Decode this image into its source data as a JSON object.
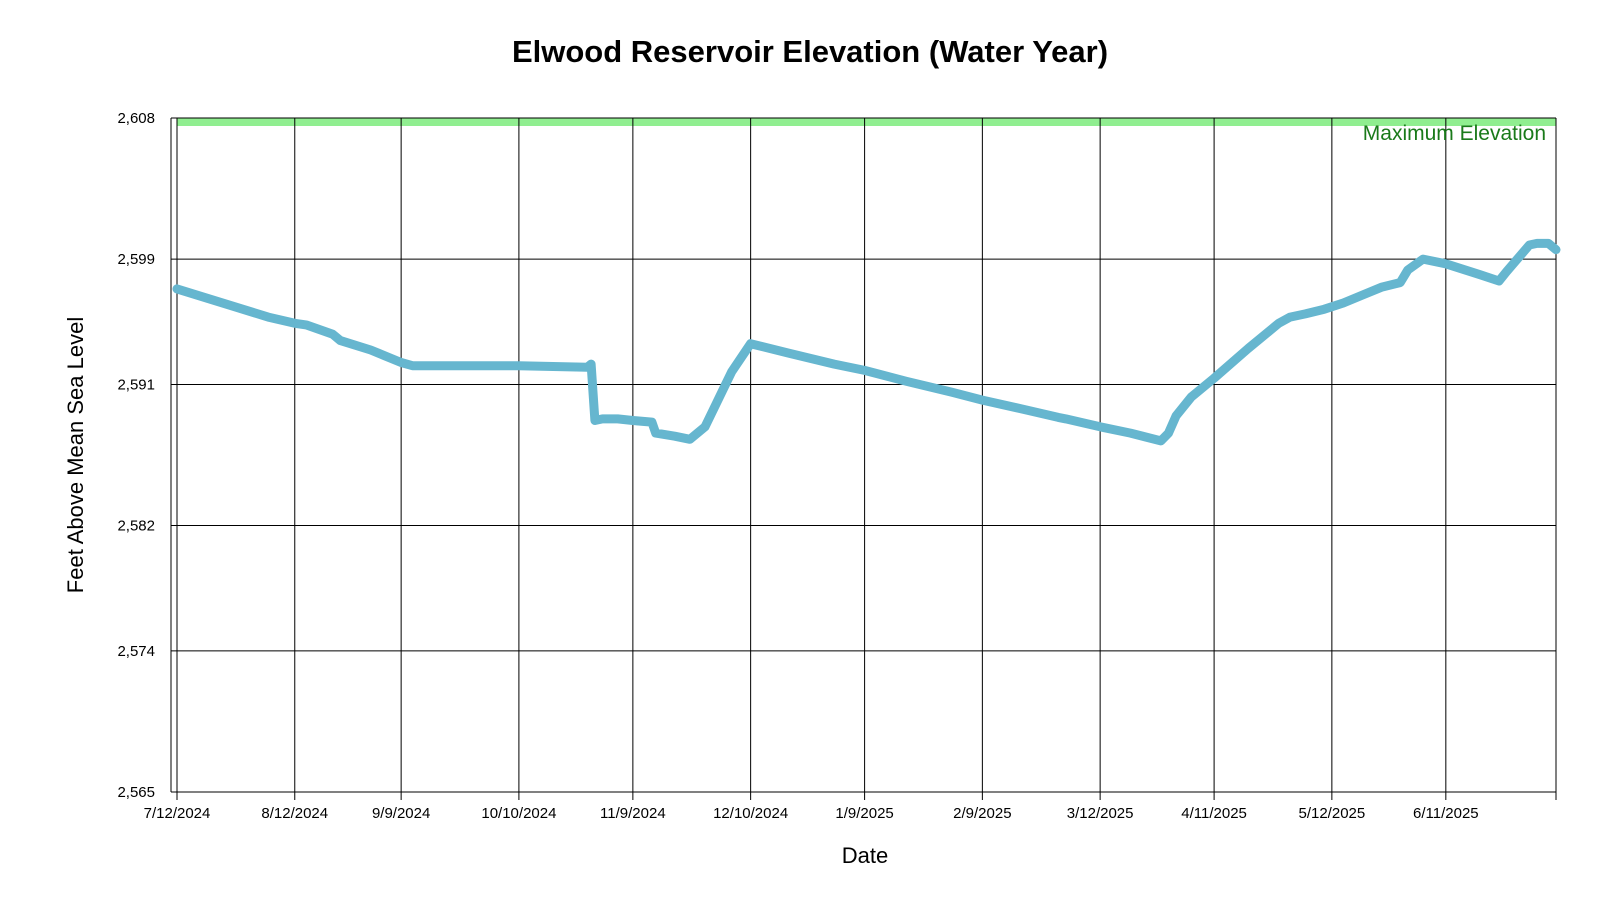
{
  "chart_data": {
    "type": "line",
    "title": "Elwood Reservoir Elevation (Water Year)",
    "xlabel": "Date",
    "ylabel": "Feet Above Mean Sea Level",
    "ylim": [
      2565,
      2608
    ],
    "xlim": [
      "2024-07-12",
      "2025-07-10"
    ],
    "y_ticks": [
      {
        "value": 2565,
        "label": "2,565"
      },
      {
        "value": 2574,
        "label": "2,574"
      },
      {
        "value": 2582,
        "label": "2,582"
      },
      {
        "value": 2591,
        "label": "2,591"
      },
      {
        "value": 2599,
        "label": "2,599"
      },
      {
        "value": 2608,
        "label": "2,608"
      }
    ],
    "x_ticks": [
      {
        "value": "2024-07-12",
        "label": "7/12/2024"
      },
      {
        "value": "2024-08-12",
        "label": "8/12/2024"
      },
      {
        "value": "2024-09-09",
        "label": "9/9/2024"
      },
      {
        "value": "2024-10-10",
        "label": "10/10/2024"
      },
      {
        "value": "2024-11-09",
        "label": "11/9/2024"
      },
      {
        "value": "2024-12-10",
        "label": "12/10/2024"
      },
      {
        "value": "2025-01-09",
        "label": "1/9/2025"
      },
      {
        "value": "2025-02-09",
        "label": "2/9/2025"
      },
      {
        "value": "2025-03-12",
        "label": "3/12/2025"
      },
      {
        "value": "2025-04-11",
        "label": "4/11/2025"
      },
      {
        "value": "2025-05-12",
        "label": "5/12/2025"
      },
      {
        "value": "2025-06-11",
        "label": "6/11/2025"
      }
    ],
    "grid": true,
    "max_elevation": {
      "label": "Maximum Elevation",
      "value": 2608
    },
    "colors": {
      "line": "#66b6cf",
      "max_band": "#90ee90",
      "max_label": "#1a7a1a"
    },
    "series": [
      {
        "x": [
          "2024-07-12",
          "2024-07-20",
          "2024-07-28",
          "2024-08-05",
          "2024-08-12",
          "2024-08-15",
          "2024-08-22",
          "2024-08-24",
          "2024-09-01",
          "2024-09-09",
          "2024-09-12",
          "2024-10-10",
          "2024-10-28",
          "2024-10-29",
          "2024-10-30",
          "2024-11-01",
          "2024-11-05",
          "2024-11-09",
          "2024-11-14",
          "2024-11-15",
          "2024-11-20",
          "2024-11-24",
          "2024-11-28",
          "2024-12-01",
          "2024-12-05",
          "2024-12-10",
          "2024-12-20",
          "2025-01-01",
          "2025-01-09",
          "2025-01-20",
          "2025-02-01",
          "2025-02-09",
          "2025-02-20",
          "2025-03-01",
          "2025-03-03",
          "2025-03-12",
          "2025-03-20",
          "2025-03-28",
          "2025-03-30",
          "2025-04-01",
          "2025-04-05",
          "2025-04-11",
          "2025-04-20",
          "2025-04-28",
          "2025-05-01",
          "2025-05-05",
          "2025-05-10",
          "2025-05-15",
          "2025-05-20",
          "2025-05-25",
          "2025-05-30",
          "2025-06-01",
          "2025-06-05",
          "2025-06-11",
          "2025-06-20",
          "2025-06-25",
          "2025-06-27",
          "2025-07-03",
          "2025-07-05",
          "2025-07-08",
          "2025-07-10"
        ],
        "y": [
          2597.1,
          2596.5,
          2595.9,
          2595.3,
          2594.9,
          2594.8,
          2594.2,
          2593.8,
          2593.2,
          2592.4,
          2592.2,
          2592.2,
          2592.1,
          2592.3,
          2588.7,
          2588.8,
          2588.8,
          2588.7,
          2588.6,
          2587.9,
          2587.7,
          2587.5,
          2588.3,
          2589.8,
          2591.8,
          2593.6,
          2593.0,
          2592.3,
          2591.9,
          2591.2,
          2590.5,
          2590.0,
          2589.4,
          2588.9,
          2588.8,
          2588.3,
          2587.9,
          2587.4,
          2587.9,
          2589.0,
          2590.2,
          2591.4,
          2593.3,
          2594.9,
          2595.3,
          2595.5,
          2595.8,
          2596.2,
          2596.7,
          2597.2,
          2597.5,
          2598.3,
          2599.0,
          2598.7,
          2598.0,
          2597.6,
          2598.2,
          2599.9,
          2600.0,
          2600.0,
          2599.6
        ]
      }
    ]
  }
}
